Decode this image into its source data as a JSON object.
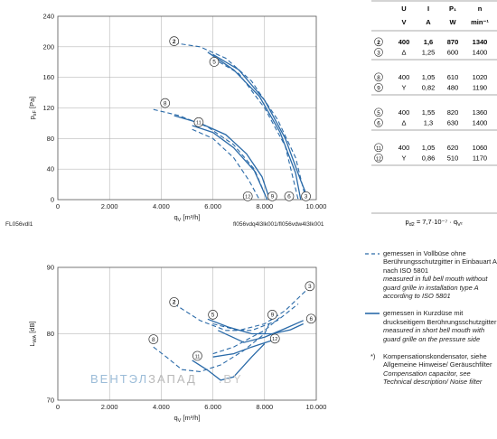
{
  "colors": {
    "solid": "#2a6aa8",
    "dashed": "#2a6aa8",
    "axis": "#555555",
    "grid": "#aaaaaa",
    "text": "#222222"
  },
  "top_plot": {
    "left_note": "FL056vdl1",
    "right_note": "fl056vdq4l3lk001/fl056vdw4l3lk001"
  },
  "table": {
    "headers": [
      "U",
      "I",
      "P₁",
      "n"
    ],
    "units": [
      "V",
      "A",
      "W",
      "min⁻¹"
    ],
    "groups": [
      {
        "rows": [
          {
            "curve": "2",
            "u": "400",
            "i": "1,6",
            "p": "870",
            "n": "1340",
            "bold": true
          },
          {
            "curve": "3",
            "u": "Δ",
            "i": "1,25",
            "p": "600",
            "n": "1400",
            "bold": false
          }
        ]
      },
      {
        "rows": [
          {
            "curve": "8",
            "u": "400",
            "i": "1,05",
            "p": "610",
            "n": "1020",
            "bold": false
          },
          {
            "curve": "9",
            "u": "Y",
            "i": "0,82",
            "p": "480",
            "n": "1190",
            "bold": false
          }
        ]
      },
      {
        "rows": [
          {
            "curve": "5",
            "u": "400",
            "i": "1,55",
            "p": "820",
            "n": "1360",
            "bold": false
          },
          {
            "curve": "6",
            "u": "Δ",
            "i": "1,3",
            "p": "630",
            "n": "1400",
            "bold": false
          }
        ]
      },
      {
        "rows": [
          {
            "curve": "11",
            "u": "400",
            "i": "1,05",
            "p": "620",
            "n": "1060",
            "bold": false
          },
          {
            "curve": "12",
            "u": "Y",
            "i": "0,86",
            "p": "510",
            "n": "1170",
            "bold": false
          }
        ]
      }
    ],
    "formula": "p_d2 = 7,7·10⁻⁷ · q_V²"
  },
  "legend": {
    "dashed": {
      "de": "gemessen in Vollbüse ohne Berührungsschutzgitter in Einbauart A nach ISO 5801",
      "en": "measured in full bell mouth without guard grille in installation type A according to ISO 5801"
    },
    "solid": {
      "de": "gemessen in Kurzdüse mit druckseitigem Berührungsschutzgitter",
      "en": "measured in short bell mouth with guard grille on the pressure side"
    },
    "note": {
      "marker": "*)",
      "de": "Kompensationskondensator, siehe Allgemeine Hinweise/ Geräuschfilter",
      "en": "Compensation capacitor, see Technical description/ Noise filter"
    }
  },
  "watermark": {
    "left": "ВЕНТЭЛ",
    "mid": "ЗАПАД",
    "right": ".BY"
  },
  "chart_data": [
    {
      "type": "line",
      "xlabel": "q_V [m³/h]",
      "ylabel": "p_sF [Pa]",
      "xlim": [
        0,
        10000
      ],
      "ylim": [
        0,
        240
      ],
      "xticks": [
        0,
        2000,
        4000,
        6000,
        8000,
        10000
      ],
      "xtick_labels": [
        "0",
        "2.000",
        "4.000",
        "6.000",
        "8.000",
        "10.000"
      ],
      "yticks": [
        0,
        40,
        80,
        120,
        160,
        200,
        240
      ],
      "grid": true,
      "series": [
        {
          "name": "2",
          "style": "dashed",
          "points": [
            [
              4500,
              205
            ],
            [
              5500,
              200
            ],
            [
              6500,
              185
            ],
            [
              7500,
              155
            ],
            [
              8500,
              105
            ],
            [
              9200,
              55
            ],
            [
              9600,
              0
            ]
          ]
        },
        {
          "name": "3",
          "style": "solid",
          "points": [
            [
              6000,
              190
            ],
            [
              7000,
              170
            ],
            [
              8000,
              130
            ],
            [
              8800,
              80
            ],
            [
              9400,
              25
            ],
            [
              9700,
              0
            ]
          ]
        },
        {
          "name": "5",
          "style": "solid",
          "points": [
            [
              5800,
              193
            ],
            [
              6800,
              170
            ],
            [
              7800,
              135
            ],
            [
              8600,
              88
            ],
            [
              9200,
              35
            ],
            [
              9400,
              0
            ]
          ]
        },
        {
          "name": "6",
          "style": "dashed",
          "points": [
            [
              6000,
              185
            ],
            [
              7000,
              165
            ],
            [
              8000,
              120
            ],
            [
              8800,
              70
            ],
            [
              9300,
              0
            ]
          ]
        },
        {
          "name": "8",
          "style": "dashed",
          "points": [
            [
              3700,
              118
            ],
            [
              4700,
              110
            ],
            [
              5800,
              95
            ],
            [
              6800,
              72
            ],
            [
              7600,
              40
            ],
            [
              8100,
              0
            ]
          ]
        },
        {
          "name": "9",
          "style": "solid",
          "points": [
            [
              4500,
              110
            ],
            [
              5500,
              100
            ],
            [
              6500,
              85
            ],
            [
              7300,
              60
            ],
            [
              7900,
              30
            ],
            [
              8200,
              0
            ]
          ]
        },
        {
          "name": "11",
          "style": "solid",
          "points": [
            [
              5200,
              97
            ],
            [
              6000,
              88
            ],
            [
              6800,
              68
            ],
            [
              7600,
              38
            ],
            [
              8100,
              0
            ]
          ]
        },
        {
          "name": "12",
          "style": "dashed",
          "points": [
            [
              5200,
              92
            ],
            [
              6000,
              80
            ],
            [
              6800,
              55
            ],
            [
              7400,
              25
            ],
            [
              7800,
              0
            ]
          ]
        }
      ],
      "curve_labels": [
        {
          "text": "2",
          "x": 4500,
          "y": 205
        },
        {
          "text": "5",
          "x": 6050,
          "y": 178
        },
        {
          "text": "8",
          "x": 4150,
          "y": 124
        },
        {
          "text": "11",
          "x": 5450,
          "y": 99
        },
        {
          "text": "12",
          "x": 7350,
          "y": 2
        },
        {
          "text": "9",
          "x": 8300,
          "y": 2
        },
        {
          "text": "6",
          "x": 8950,
          "y": 2
        },
        {
          "text": "3",
          "x": 9600,
          "y": 2
        }
      ]
    },
    {
      "type": "line",
      "xlabel": "q_V [m³/h]",
      "ylabel": "L_WA [dB]",
      "xlim": [
        0,
        10000
      ],
      "ylim": [
        70,
        90
      ],
      "xticks": [
        0,
        2000,
        4000,
        6000,
        8000,
        10000
      ],
      "xtick_labels": [
        "0",
        "2.000",
        "4.000",
        "6.000",
        "8.000",
        "10.000"
      ],
      "yticks": [
        70,
        80,
        90
      ],
      "grid": true,
      "series": [
        {
          "name": "2",
          "style": "dashed",
          "points": [
            [
              4500,
              84.5
            ],
            [
              5500,
              82
            ],
            [
              6500,
              80.5
            ],
            [
              7500,
              80.5
            ],
            [
              8500,
              82
            ],
            [
              9300,
              84.5
            ]
          ]
        },
        {
          "name": "3",
          "style": "dashed",
          "points": [
            [
              6000,
              81.5
            ],
            [
              7000,
              80.5
            ],
            [
              8000,
              81.5
            ],
            [
              8800,
              83.5
            ],
            [
              9600,
              86.5
            ]
          ]
        },
        {
          "name": "5",
          "style": "solid",
          "points": [
            [
              5800,
              82.2
            ],
            [
              6600,
              81
            ],
            [
              7500,
              80
            ],
            [
              8300,
              80
            ],
            [
              9000,
              80.6
            ],
            [
              9500,
              81.5
            ]
          ]
        },
        {
          "name": "6",
          "style": "solid",
          "points": [
            [
              6200,
              80.5
            ],
            [
              7200,
              78.7
            ],
            [
              8000,
              79.5
            ],
            [
              8800,
              80.8
            ],
            [
              9500,
              82
            ]
          ]
        },
        {
          "name": "8",
          "style": "dashed",
          "points": [
            [
              3700,
              78
            ],
            [
              4200,
              76.5
            ],
            [
              4800,
              74.6
            ],
            [
              5500,
              74.3
            ],
            [
              6300,
              75.3
            ],
            [
              7200,
              77.5
            ],
            [
              8000,
              80
            ],
            [
              8300,
              82.5
            ]
          ]
        },
        {
          "name": "9",
          "style": "dashed",
          "points": [
            [
              6000,
              77
            ],
            [
              6800,
              78
            ],
            [
              7500,
              79.5
            ],
            [
              8000,
              80.5
            ],
            [
              8600,
              82.5
            ]
          ]
        },
        {
          "name": "11",
          "style": "solid",
          "points": [
            [
              5200,
              76
            ],
            [
              5800,
              74.5
            ],
            [
              6300,
              73
            ],
            [
              6800,
              73.5
            ],
            [
              7500,
              76.5
            ],
            [
              8000,
              78.5
            ]
          ]
        },
        {
          "name": "12",
          "style": "solid",
          "points": [
            [
              6000,
              76.5
            ],
            [
              6800,
              77
            ],
            [
              7500,
              78
            ],
            [
              8300,
              79
            ]
          ]
        }
      ],
      "curve_labels": [
        {
          "text": "2",
          "x": 4500,
          "y": 84.5
        },
        {
          "text": "5",
          "x": 6000,
          "y": 82.6
        },
        {
          "text": "8",
          "x": 3700,
          "y": 78.9
        },
        {
          "text": "11",
          "x": 5400,
          "y": 76.4
        },
        {
          "text": "9",
          "x": 8300,
          "y": 82.6
        },
        {
          "text": "12",
          "x": 8400,
          "y": 79
        },
        {
          "text": "3",
          "x": 9750,
          "y": 86.9
        },
        {
          "text": "6",
          "x": 9800,
          "y": 82
        }
      ]
    }
  ]
}
